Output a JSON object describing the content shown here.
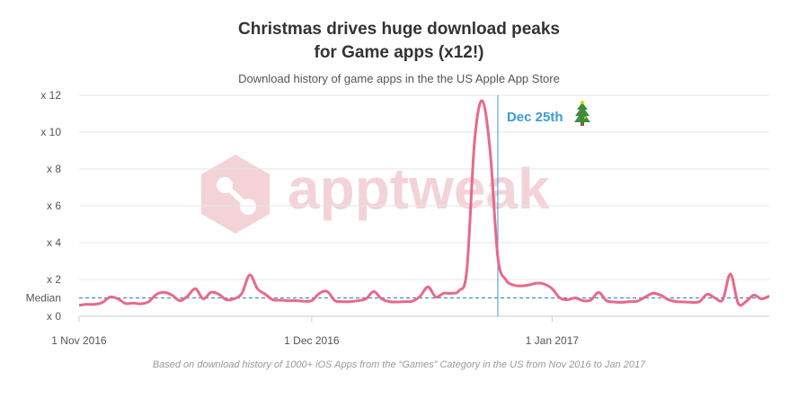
{
  "chart_data": {
    "type": "line",
    "title_line1": "Christmas drives huge download peaks",
    "title_line2": "for Game apps (x12!)",
    "subtitle": "Download history of game apps in the the US Apple App Store",
    "footnote": "Based on download history of 1000+ iOS Apps from the “Games” Category in the US from Nov 2016 to Jan 2017",
    "watermark": "apptweak",
    "x_start": "2016-11-01",
    "x_end": "2017-01-29",
    "x_ticks": [
      {
        "date": "2016-11-01",
        "label": "1 Nov 2016"
      },
      {
        "date": "2016-12-01",
        "label": "1 Dec 2016"
      },
      {
        "date": "2017-01-01",
        "label": "1 Jan 2017"
      }
    ],
    "ylim": [
      0,
      12
    ],
    "y_ticks": [
      {
        "value": 0,
        "label": "x 0"
      },
      {
        "value": 1,
        "label": "Median"
      },
      {
        "value": 2,
        "label": "x 2"
      },
      {
        "value": 4,
        "label": "x 4"
      },
      {
        "value": 6,
        "label": "x 6"
      },
      {
        "value": 8,
        "label": "x 8"
      },
      {
        "value": 10,
        "label": "x 10"
      },
      {
        "value": 12,
        "label": "x 12"
      }
    ],
    "median": 1,
    "grid": true,
    "annotation": {
      "date": "2016-12-25",
      "label": "Dec 25th",
      "icon": "christmas-tree-icon"
    },
    "colors": {
      "line": "#e8698a",
      "median": "#3d8fd0",
      "annotation": "#3d9bd4",
      "grid": "#e6e6e6",
      "watermark": "#f3d3d8"
    },
    "series": [
      {
        "x": [
          "2016-11-01",
          "2016-11-02",
          "2016-11-03",
          "2016-11-04",
          "2016-11-05",
          "2016-11-06",
          "2016-11-07",
          "2016-11-08",
          "2016-11-09",
          "2016-11-10",
          "2016-11-11",
          "2016-11-12",
          "2016-11-13",
          "2016-11-14",
          "2016-11-15",
          "2016-11-16",
          "2016-11-17",
          "2016-11-18",
          "2016-11-19",
          "2016-11-20",
          "2016-11-21",
          "2016-11-22",
          "2016-11-23",
          "2016-11-24",
          "2016-11-25",
          "2016-11-26",
          "2016-11-27",
          "2016-11-28",
          "2016-11-29",
          "2016-11-30",
          "2016-12-01",
          "2016-12-02",
          "2016-12-03",
          "2016-12-04",
          "2016-12-05",
          "2016-12-06",
          "2016-12-07",
          "2016-12-08",
          "2016-12-09",
          "2016-12-10",
          "2016-12-11",
          "2016-12-12",
          "2016-12-13",
          "2016-12-14",
          "2016-12-15",
          "2016-12-16",
          "2016-12-17",
          "2016-12-18",
          "2016-12-19",
          "2016-12-20",
          "2016-12-21",
          "2016-12-22",
          "2016-12-23",
          "2016-12-24",
          "2016-12-25",
          "2016-12-26",
          "2016-12-27",
          "2016-12-28",
          "2016-12-29",
          "2016-12-30",
          "2016-12-31",
          "2017-01-01",
          "2017-01-02",
          "2017-01-03",
          "2017-01-04",
          "2017-01-05",
          "2017-01-06",
          "2017-01-07",
          "2017-01-08",
          "2017-01-09",
          "2017-01-10",
          "2017-01-11",
          "2017-01-12",
          "2017-01-13",
          "2017-01-14",
          "2017-01-15",
          "2017-01-16",
          "2017-01-17",
          "2017-01-18",
          "2017-01-19",
          "2017-01-20",
          "2017-01-21",
          "2017-01-22",
          "2017-01-23",
          "2017-01-24",
          "2017-01-25",
          "2017-01-26",
          "2017-01-27",
          "2017-01-28",
          "2017-01-29"
        ],
        "y": [
          0.6,
          0.65,
          0.65,
          0.75,
          1.05,
          0.95,
          0.7,
          0.72,
          0.68,
          0.8,
          1.2,
          1.3,
          1.15,
          0.85,
          1.1,
          1.5,
          0.95,
          1.3,
          1.2,
          0.9,
          0.95,
          1.25,
          2.25,
          1.5,
          1.2,
          0.9,
          0.88,
          0.85,
          0.85,
          0.82,
          0.85,
          1.25,
          1.35,
          0.85,
          0.8,
          0.8,
          0.85,
          0.95,
          1.35,
          0.95,
          0.8,
          0.78,
          0.8,
          0.82,
          1.1,
          1.6,
          1.05,
          1.25,
          1.25,
          1.4,
          2.5,
          9.5,
          11.7,
          9.0,
          3.2,
          2.0,
          1.7,
          1.65,
          1.7,
          1.8,
          1.75,
          1.5,
          1.0,
          0.9,
          1.0,
          0.85,
          0.88,
          1.3,
          0.85,
          0.78,
          0.76,
          0.8,
          0.82,
          1.05,
          1.25,
          1.15,
          0.9,
          0.8,
          0.78,
          0.76,
          0.8,
          1.2,
          1.0,
          0.9,
          2.3,
          0.7,
          0.8,
          1.15,
          0.95,
          1.1
        ]
      }
    ]
  }
}
